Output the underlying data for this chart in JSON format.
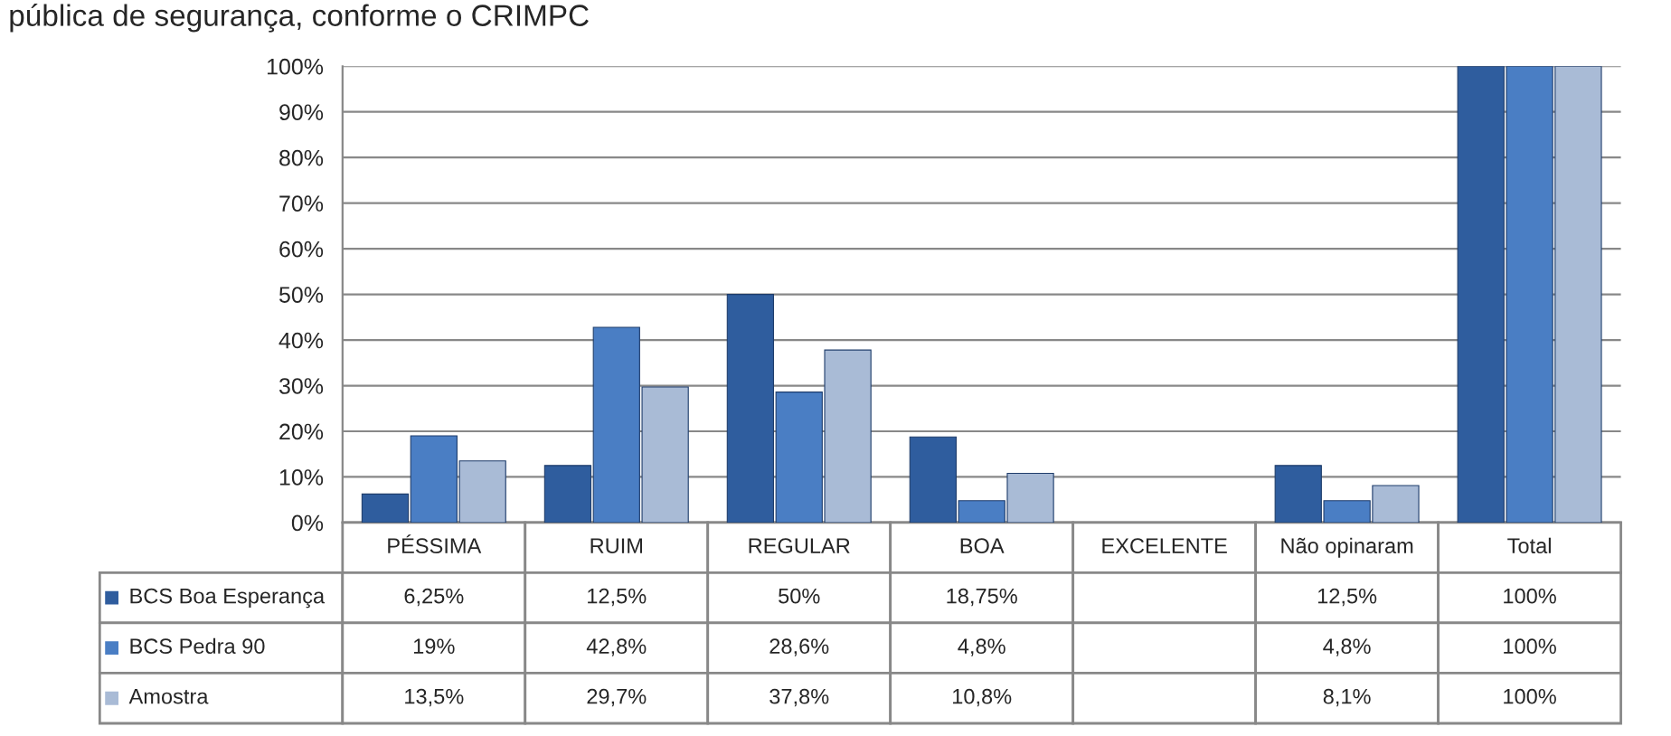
{
  "chart_data": {
    "type": "bar",
    "title": "pública de segurança, conforme o CRIMPC",
    "categories": [
      "PÉSSIMA",
      "RUIM",
      "REGULAR",
      "BOA",
      "EXCELENTE",
      "Não opinaram",
      "Total"
    ],
    "series": [
      {
        "name": "BCS Boa Esperança",
        "color": "#2f5d9e",
        "values": [
          6.25,
          12.5,
          50,
          18.75,
          null,
          12.5,
          100
        ],
        "value_labels": [
          "6,25%",
          "12,5%",
          "50%",
          "18,75%",
          null,
          "12,5%",
          "100%"
        ]
      },
      {
        "name": "BCS Pedra 90",
        "color": "#4a7ec4",
        "values": [
          19,
          42.8,
          28.6,
          4.8,
          null,
          4.8,
          100
        ],
        "value_labels": [
          "19%",
          "42,8%",
          "28,6%",
          "4,8%",
          null,
          "4,8%",
          "100%"
        ]
      },
      {
        "name": "Amostra",
        "color": "#a9bbd6",
        "values": [
          13.5,
          29.7,
          37.8,
          10.8,
          null,
          8.1,
          100
        ],
        "value_labels": [
          "13,5%",
          "29,7%",
          "37,8%",
          "10,8%",
          null,
          "8,1%",
          "100%"
        ]
      }
    ],
    "ylim": [
      0,
      100
    ],
    "yticks": [
      {
        "value": 0,
        "label": "0%"
      },
      {
        "value": 10,
        "label": "10%"
      },
      {
        "value": 20,
        "label": "20%"
      },
      {
        "value": 30,
        "label": "30%"
      },
      {
        "value": 40,
        "label": "40%"
      },
      {
        "value": 50,
        "label": "50%"
      },
      {
        "value": 60,
        "label": "60%"
      },
      {
        "value": 70,
        "label": "70%"
      },
      {
        "value": 80,
        "label": "80%"
      },
      {
        "value": 90,
        "label": "90%"
      },
      {
        "value": 100,
        "label": "100%"
      }
    ],
    "grid": "y",
    "legend": "bottom"
  }
}
